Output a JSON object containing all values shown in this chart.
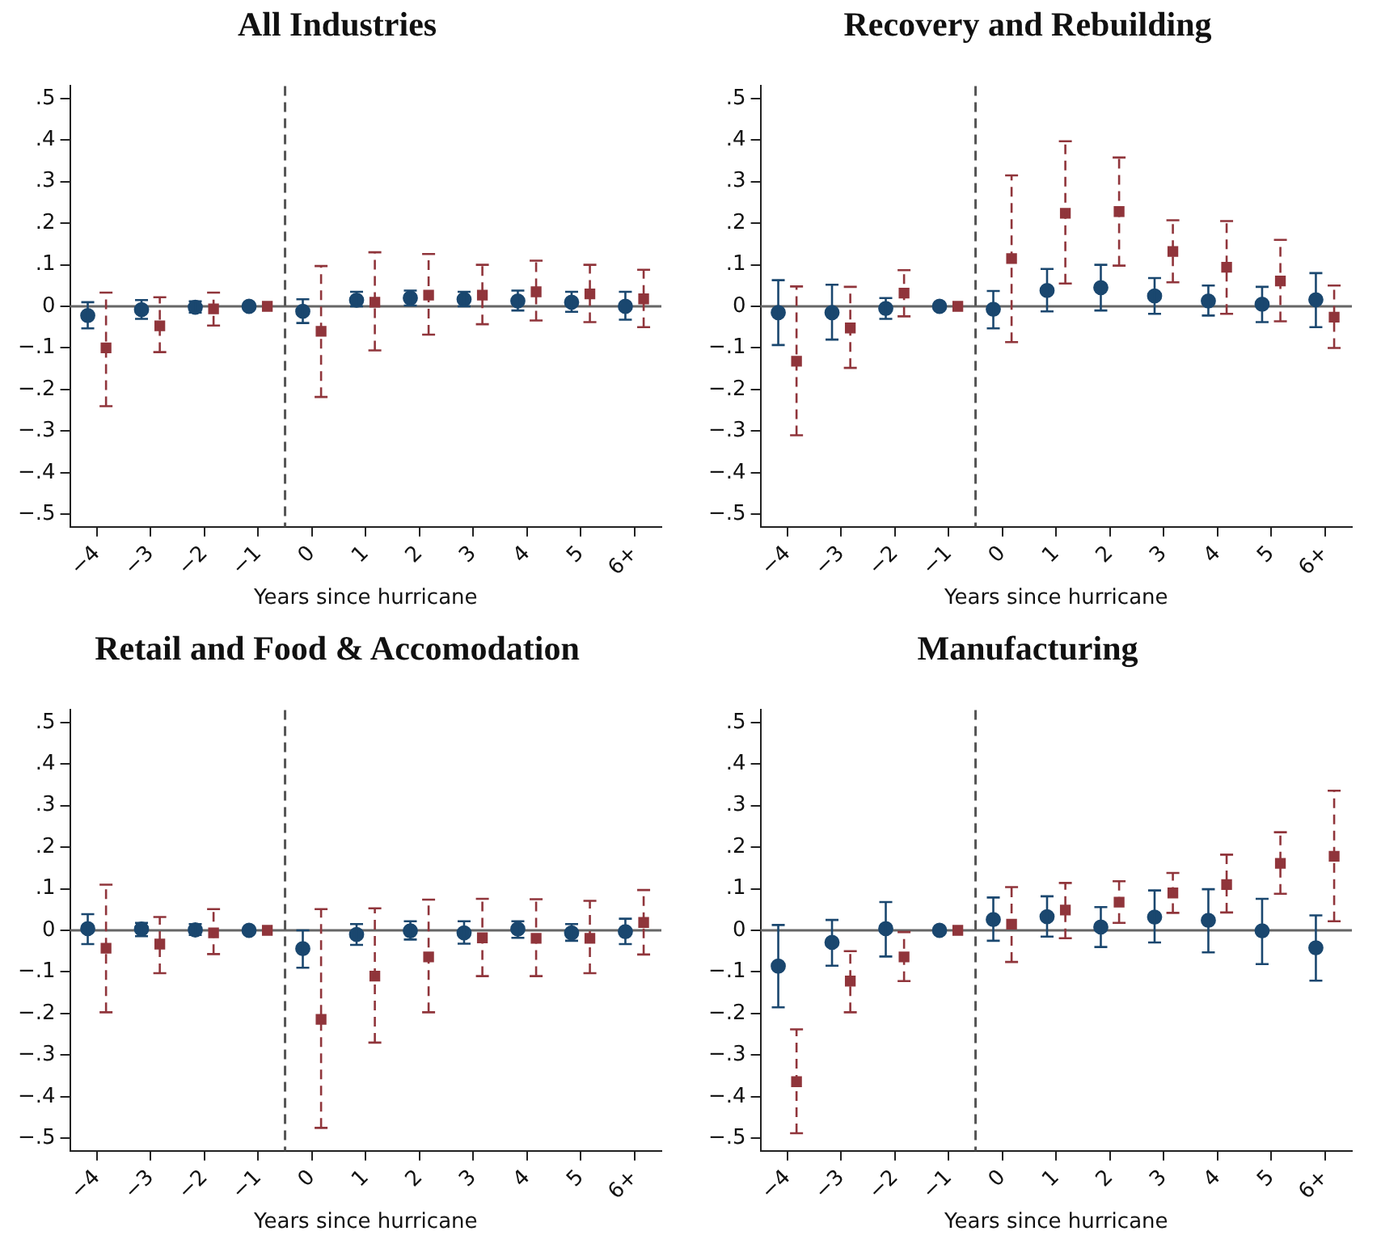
{
  "chart_data": [
    {
      "type": "scatter",
      "title": "All Industries",
      "xlabel": "Years since hurricane",
      "xlim": [
        -4.5,
        6.5
      ],
      "xticks": [
        {
          "value": -4,
          "label": "−4"
        },
        {
          "value": -3,
          "label": "−3"
        },
        {
          "value": -2,
          "label": "−2"
        },
        {
          "value": -1,
          "label": "−1"
        },
        0,
        1,
        2,
        3,
        4,
        5,
        {
          "value": 6,
          "label": "6+"
        }
      ],
      "ylim": [
        -0.53,
        0.53
      ],
      "yticks": [
        {
          "value": -0.5,
          "label": "−.5"
        },
        {
          "value": -0.4,
          "label": "−.4"
        },
        {
          "value": -0.3,
          "label": "−.3"
        },
        {
          "value": -0.2,
          "label": "−.2"
        },
        {
          "value": -0.1,
          "label": "−.1"
        },
        {
          "value": 0,
          "label": "0"
        },
        {
          "value": 0.1,
          "label": ".1"
        },
        {
          "value": 0.2,
          "label": ".2"
        },
        {
          "value": 0.3,
          "label": ".3"
        },
        {
          "value": 0.4,
          "label": ".4"
        },
        {
          "value": 0.5,
          "label": ".5"
        }
      ],
      "grid": false,
      "ref_lines": [
        {
          "axis": "y",
          "value": 0,
          "color": "#666666",
          "line_style": "solid"
        },
        {
          "axis": "x",
          "value": -0.5,
          "color": "#555555",
          "line_style": "dashed"
        }
      ],
      "series": [
        {
          "color": "#1a476f",
          "marker": "circle",
          "line_style": "solid",
          "x": [
            -4.17,
            -3.17,
            -2.17,
            -1.17,
            -0.17,
            0.83,
            1.83,
            2.83,
            3.83,
            4.83,
            5.83
          ],
          "values": [
            -0.022,
            -0.008,
            -0.002,
            0,
            -0.012,
            0.015,
            0.02,
            0.017,
            0.013,
            0.01,
            0
          ],
          "errors": [
            [
              -0.053,
              0.01
            ],
            [
              -0.03,
              0.015
            ],
            [
              -0.015,
              0.012
            ],
            null,
            [
              -0.04,
              0.017
            ],
            [
              0,
              0.035
            ],
            [
              0.002,
              0.038
            ],
            [
              0,
              0.035
            ],
            [
              -0.01,
              0.038
            ],
            [
              -0.013,
              0.035
            ],
            [
              -0.032,
              0.035
            ]
          ]
        },
        {
          "color": "#90353b",
          "marker": "square",
          "line_style": "dashed",
          "x": [
            -3.83,
            -2.83,
            -1.83,
            -0.83,
            0.17,
            1.17,
            2.17,
            3.17,
            4.17,
            5.17,
            6.17
          ],
          "values": [
            -0.1,
            -0.047,
            -0.006,
            0,
            -0.06,
            0.01,
            0.027,
            0.027,
            0.035,
            0.03,
            0.018
          ],
          "errors": [
            [
              -0.24,
              0.033
            ],
            [
              -0.11,
              0.022
            ],
            [
              -0.046,
              0.033
            ],
            null,
            [
              -0.218,
              0.097
            ],
            [
              -0.106,
              0.13
            ],
            [
              -0.068,
              0.126
            ],
            [
              -0.043,
              0.1
            ],
            [
              -0.034,
              0.11
            ],
            [
              -0.038,
              0.1
            ],
            [
              -0.05,
              0.088
            ]
          ]
        }
      ]
    },
    {
      "type": "scatter",
      "title": "Recovery and Rebuilding",
      "xlabel": "Years since hurricane",
      "xlim": [
        -4.5,
        6.5
      ],
      "xticks": [
        {
          "value": -4,
          "label": "−4"
        },
        {
          "value": -3,
          "label": "−3"
        },
        {
          "value": -2,
          "label": "−2"
        },
        {
          "value": -1,
          "label": "−1"
        },
        0,
        1,
        2,
        3,
        4,
        5,
        {
          "value": 6,
          "label": "6+"
        }
      ],
      "ylim": [
        -0.53,
        0.53
      ],
      "yticks": [
        {
          "value": -0.5,
          "label": "−.5"
        },
        {
          "value": -0.4,
          "label": "−.4"
        },
        {
          "value": -0.3,
          "label": "−.3"
        },
        {
          "value": -0.2,
          "label": "−.2"
        },
        {
          "value": -0.1,
          "label": "−.1"
        },
        {
          "value": 0,
          "label": "0"
        },
        {
          "value": 0.1,
          "label": ".1"
        },
        {
          "value": 0.2,
          "label": ".2"
        },
        {
          "value": 0.3,
          "label": ".3"
        },
        {
          "value": 0.4,
          "label": ".4"
        },
        {
          "value": 0.5,
          "label": ".5"
        }
      ],
      "grid": false,
      "ref_lines": [
        {
          "axis": "y",
          "value": 0,
          "color": "#666666",
          "line_style": "solid"
        },
        {
          "axis": "x",
          "value": -0.5,
          "color": "#555555",
          "line_style": "dashed"
        }
      ],
      "series": [
        {
          "color": "#1a476f",
          "marker": "circle",
          "line_style": "solid",
          "x": [
            -4.17,
            -3.17,
            -2.17,
            -1.17,
            -0.17,
            0.83,
            1.83,
            2.83,
            3.83,
            4.83,
            5.83
          ],
          "values": [
            -0.015,
            -0.015,
            -0.005,
            0,
            -0.007,
            0.038,
            0.045,
            0.025,
            0.013,
            0.005,
            0.016
          ],
          "errors": [
            [
              -0.093,
              0.063
            ],
            [
              -0.08,
              0.052
            ],
            [
              -0.03,
              0.02
            ],
            null,
            [
              -0.053,
              0.037
            ],
            [
              -0.012,
              0.09
            ],
            [
              -0.01,
              0.1
            ],
            [
              -0.018,
              0.068
            ],
            [
              -0.022,
              0.05
            ],
            [
              -0.038,
              0.047
            ],
            [
              -0.05,
              0.08
            ]
          ]
        },
        {
          "color": "#90353b",
          "marker": "square",
          "line_style": "dashed",
          "x": [
            -3.83,
            -2.83,
            -1.83,
            -0.83,
            0.17,
            1.17,
            2.17,
            3.17,
            4.17,
            5.17,
            6.17
          ],
          "values": [
            -0.132,
            -0.052,
            0.032,
            0,
            0.115,
            0.224,
            0.228,
            0.132,
            0.094,
            0.061,
            -0.026
          ],
          "errors": [
            [
              -0.31,
              0.048
            ],
            [
              -0.148,
              0.047
            ],
            [
              -0.024,
              0.087
            ],
            null,
            [
              -0.086,
              0.315
            ],
            [
              0.055,
              0.397
            ],
            [
              0.098,
              0.358
            ],
            [
              0.058,
              0.207
            ],
            [
              -0.018,
              0.205
            ],
            [
              -0.036,
              0.16
            ],
            [
              -0.1,
              0.05
            ]
          ]
        }
      ]
    },
    {
      "type": "scatter",
      "title": "Retail and Food & Accomodation",
      "xlabel": "Years since hurricane",
      "xlim": [
        -4.5,
        6.5
      ],
      "xticks": [
        {
          "value": -4,
          "label": "−4"
        },
        {
          "value": -3,
          "label": "−3"
        },
        {
          "value": -2,
          "label": "−2"
        },
        {
          "value": -1,
          "label": "−1"
        },
        0,
        1,
        2,
        3,
        4,
        5,
        {
          "value": 6,
          "label": "6+"
        }
      ],
      "ylim": [
        -0.53,
        0.53
      ],
      "yticks": [
        {
          "value": -0.5,
          "label": "−.5"
        },
        {
          "value": -0.4,
          "label": "−.4"
        },
        {
          "value": -0.3,
          "label": "−.3"
        },
        {
          "value": -0.2,
          "label": "−.2"
        },
        {
          "value": -0.1,
          "label": "−.1"
        },
        {
          "value": 0,
          "label": "0"
        },
        {
          "value": 0.1,
          "label": ".1"
        },
        {
          "value": 0.2,
          "label": ".2"
        },
        {
          "value": 0.3,
          "label": ".3"
        },
        {
          "value": 0.4,
          "label": ".4"
        },
        {
          "value": 0.5,
          "label": ".5"
        }
      ],
      "grid": false,
      "ref_lines": [
        {
          "axis": "y",
          "value": 0,
          "color": "#666666",
          "line_style": "solid"
        },
        {
          "axis": "x",
          "value": -0.5,
          "color": "#555555",
          "line_style": "dashed"
        }
      ],
      "series": [
        {
          "color": "#1a476f",
          "marker": "circle",
          "line_style": "solid",
          "x": [
            -4.17,
            -3.17,
            -2.17,
            -1.17,
            -0.17,
            0.83,
            1.83,
            2.83,
            3.83,
            4.83,
            5.83
          ],
          "values": [
            0.004,
            0.003,
            0.001,
            0,
            -0.044,
            -0.01,
            -0.001,
            -0.006,
            0.003,
            -0.006,
            -0.003
          ],
          "errors": [
            [
              -0.033,
              0.039
            ],
            [
              -0.014,
              0.018
            ],
            [
              -0.011,
              0.015
            ],
            null,
            [
              -0.09,
              0
            ],
            [
              -0.035,
              0.015
            ],
            [
              -0.022,
              0.022
            ],
            [
              -0.032,
              0.022
            ],
            [
              -0.018,
              0.022
            ],
            [
              -0.025,
              0.015
            ],
            [
              -0.033,
              0.028
            ]
          ]
        },
        {
          "color": "#90353b",
          "marker": "square",
          "line_style": "dashed",
          "x": [
            -3.83,
            -2.83,
            -1.83,
            -0.83,
            0.17,
            1.17,
            2.17,
            3.17,
            4.17,
            5.17,
            6.17
          ],
          "values": [
            -0.043,
            -0.033,
            -0.006,
            0,
            -0.214,
            -0.11,
            -0.064,
            -0.018,
            -0.019,
            -0.019,
            0.019
          ],
          "errors": [
            [
              -0.197,
              0.11
            ],
            [
              -0.103,
              0.032
            ],
            [
              -0.057,
              0.051
            ],
            null,
            [
              -0.475,
              0.051
            ],
            [
              -0.27,
              0.053
            ],
            [
              -0.197,
              0.074
            ],
            [
              -0.11,
              0.076
            ],
            [
              -0.11,
              0.075
            ],
            [
              -0.103,
              0.071
            ],
            [
              -0.058,
              0.097
            ]
          ]
        }
      ]
    },
    {
      "type": "scatter",
      "title": "Manufacturing",
      "xlabel": "Years since hurricane",
      "xlim": [
        -4.5,
        6.5
      ],
      "xticks": [
        {
          "value": -4,
          "label": "−4"
        },
        {
          "value": -3,
          "label": "−3"
        },
        {
          "value": -2,
          "label": "−2"
        },
        {
          "value": -1,
          "label": "−1"
        },
        0,
        1,
        2,
        3,
        4,
        5,
        {
          "value": 6,
          "label": "6+"
        }
      ],
      "ylim": [
        -0.53,
        0.53
      ],
      "yticks": [
        {
          "value": -0.5,
          "label": "−.5"
        },
        {
          "value": -0.4,
          "label": "−.4"
        },
        {
          "value": -0.3,
          "label": "−.3"
        },
        {
          "value": -0.2,
          "label": "−.2"
        },
        {
          "value": -0.1,
          "label": "−.1"
        },
        {
          "value": 0,
          "label": "0"
        },
        {
          "value": 0.1,
          "label": ".1"
        },
        {
          "value": 0.2,
          "label": ".2"
        },
        {
          "value": 0.3,
          "label": ".3"
        },
        {
          "value": 0.4,
          "label": ".4"
        },
        {
          "value": 0.5,
          "label": ".5"
        }
      ],
      "grid": false,
      "ref_lines": [
        {
          "axis": "y",
          "value": 0,
          "color": "#666666",
          "line_style": "solid"
        },
        {
          "axis": "x",
          "value": -0.5,
          "color": "#555555",
          "line_style": "dashed"
        }
      ],
      "series": [
        {
          "color": "#1a476f",
          "marker": "circle",
          "line_style": "solid",
          "x": [
            -4.17,
            -3.17,
            -2.17,
            -1.17,
            -0.17,
            0.83,
            1.83,
            2.83,
            3.83,
            4.83,
            5.83
          ],
          "values": [
            -0.086,
            -0.029,
            0.004,
            0,
            0.026,
            0.033,
            0.008,
            0.032,
            0.024,
            -0.001,
            -0.042
          ],
          "errors": [
            [
              -0.185,
              0.013
            ],
            [
              -0.085,
              0.025
            ],
            [
              -0.063,
              0.068
            ],
            null,
            [
              -0.025,
              0.079
            ],
            [
              -0.015,
              0.082
            ],
            [
              -0.04,
              0.056
            ],
            [
              -0.029,
              0.096
            ],
            [
              -0.053,
              0.099
            ],
            [
              -0.081,
              0.076
            ],
            [
              -0.121,
              0.036
            ]
          ]
        },
        {
          "color": "#90353b",
          "marker": "square",
          "line_style": "dashed",
          "x": [
            -3.83,
            -2.83,
            -1.83,
            -0.83,
            0.17,
            1.17,
            2.17,
            3.17,
            4.17,
            5.17,
            6.17
          ],
          "values": [
            -0.364,
            -0.122,
            -0.064,
            0,
            0.015,
            0.049,
            0.068,
            0.09,
            0.11,
            0.161,
            0.178
          ],
          "errors": [
            [
              -0.488,
              -0.238
            ],
            [
              -0.197,
              -0.05
            ],
            [
              -0.122,
              -0.004
            ],
            null,
            [
              -0.076,
              0.104
            ],
            [
              -0.019,
              0.114
            ],
            [
              0.018,
              0.118
            ],
            [
              0.042,
              0.138
            ],
            [
              0.043,
              0.182
            ],
            [
              0.088,
              0.236
            ],
            [
              0.022,
              0.336
            ]
          ]
        }
      ]
    }
  ]
}
